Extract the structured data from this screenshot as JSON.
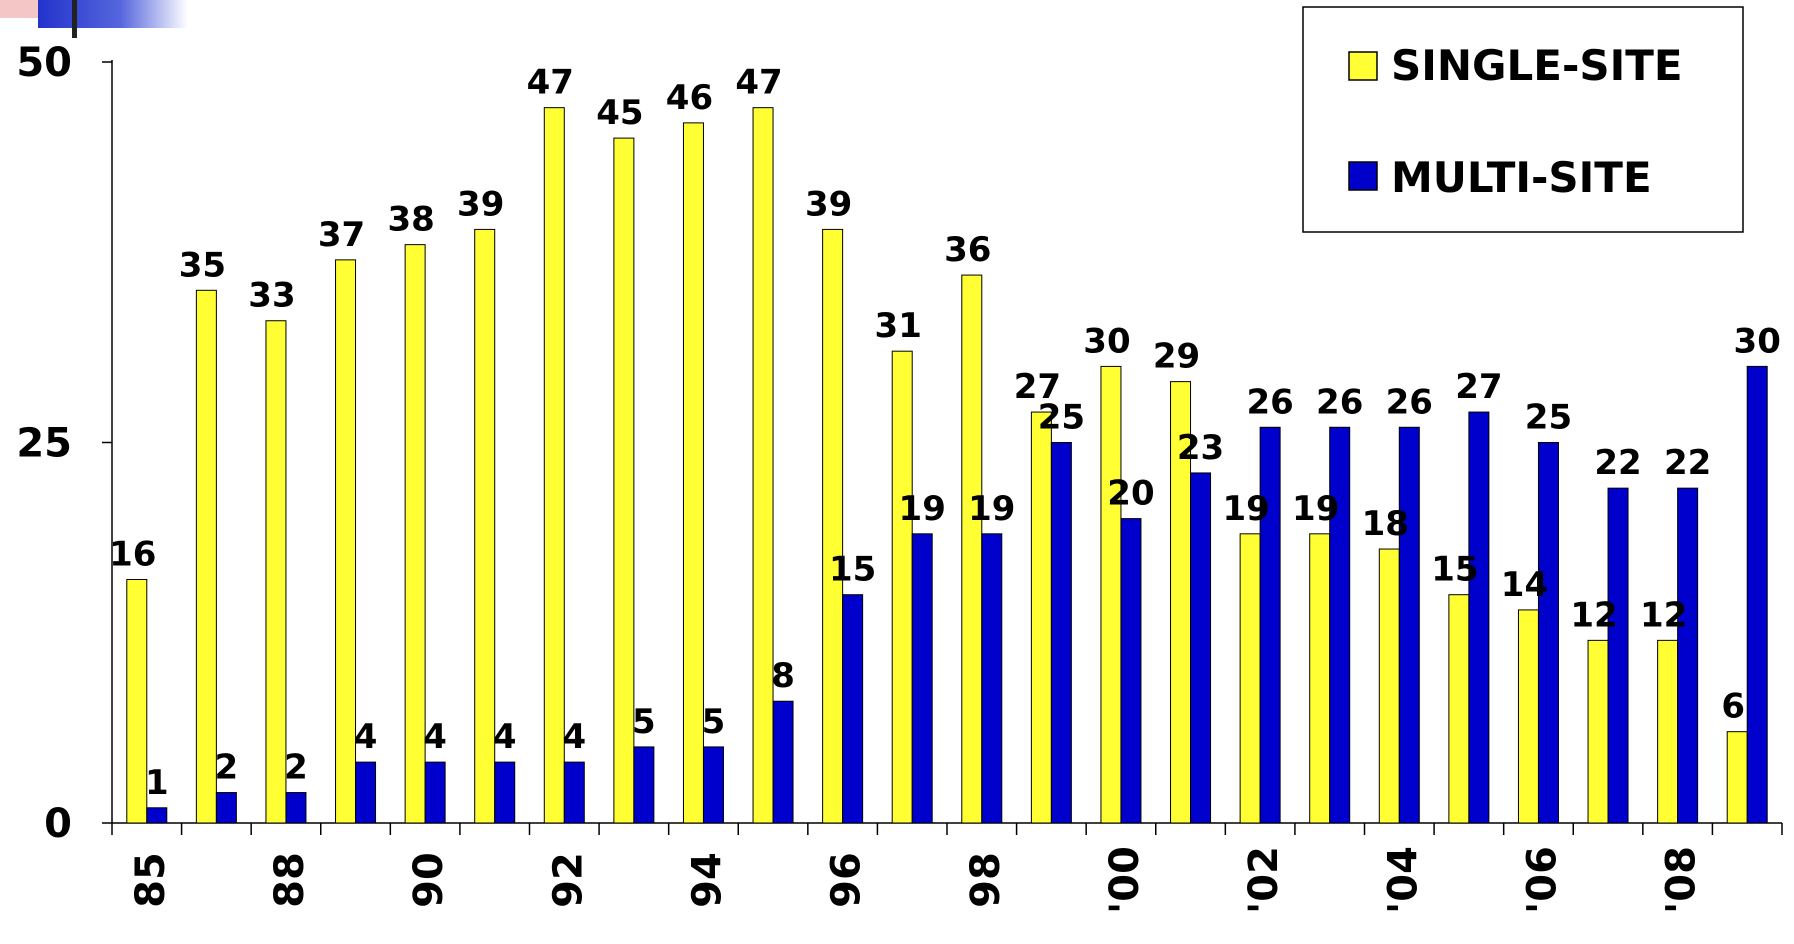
{
  "chart_data": {
    "type": "bar",
    "categories": [
      "85",
      "",
      "88",
      "",
      "90",
      "",
      "92",
      "",
      "94",
      "",
      "96",
      "",
      "98",
      "",
      "'00",
      "",
      "'02",
      "",
      "'04",
      "",
      "'06",
      "",
      "'08",
      ""
    ],
    "series": [
      {
        "name": "SINGLE-SITE",
        "color": "#ffff33",
        "values": [
          16,
          35,
          33,
          37,
          38,
          39,
          47,
          45,
          46,
          47,
          39,
          31,
          36,
          27,
          30,
          29,
          19,
          19,
          18,
          15,
          14,
          12,
          12,
          6
        ]
      },
      {
        "name": "MULTI-SITE",
        "color": "#0000cc",
        "values": [
          1,
          2,
          2,
          4,
          4,
          4,
          4,
          5,
          5,
          8,
          15,
          19,
          19,
          25,
          20,
          23,
          26,
          26,
          26,
          27,
          25,
          22,
          22,
          30
        ]
      }
    ],
    "yticks": [
      "0",
      "25",
      "50"
    ],
    "ylim": [
      0,
      50
    ],
    "legend_position": "top-right",
    "grid": false
  }
}
